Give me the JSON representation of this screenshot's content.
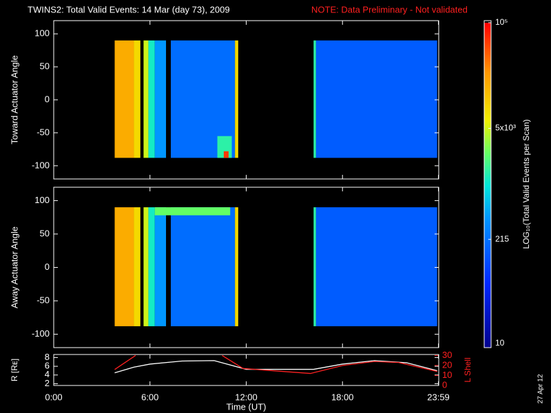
{
  "title": "TWINS2: Total Valid Events: 14 Mar (day  73), 2009",
  "note": "NOTE: Data Preliminary - Not validated",
  "date": "27 Apr 12",
  "colorbar": {
    "label": "LOG₁₀(Total Valid Events per Scan)",
    "lim": [
      10,
      100000
    ],
    "ticks": [
      10,
      215,
      {
        "value": 5000,
        "label": "5x10³"
      },
      {
        "value": 100000,
        "label": "10⁵"
      }
    ]
  },
  "chart_data": [
    {
      "type": "heatmap",
      "ylabel": "Toward Actuator Angle",
      "ylim": [
        -120,
        120
      ],
      "yticks": [
        -100,
        -50,
        0,
        50,
        100
      ],
      "cells": [
        {
          "x0": 3.8,
          "x1": 5.0,
          "y0": -88,
          "y1": 90,
          "value": 18000
        },
        {
          "x0": 5.0,
          "x1": 5.4,
          "y0": -88,
          "y1": 90,
          "value": 9000
        },
        {
          "x0": 5.6,
          "x1": 5.9,
          "y0": -88,
          "y1": 90,
          "value": 5000
        },
        {
          "x0": 5.9,
          "x1": 6.3,
          "y0": -88,
          "y1": 90,
          "value": 1200
        },
        {
          "x0": 6.3,
          "x1": 7.0,
          "y0": -88,
          "y1": 90,
          "value": 400
        },
        {
          "x0": 7.3,
          "x1": 11.3,
          "y0": -88,
          "y1": 90,
          "value": 200
        },
        {
          "x0": 10.2,
          "x1": 11.1,
          "y0": -88,
          "y1": -55,
          "value": 1500
        },
        {
          "x0": 10.6,
          "x1": 10.9,
          "y0": -88,
          "y1": -78,
          "value": 60000
        },
        {
          "x0": 11.3,
          "x1": 11.5,
          "y0": -88,
          "y1": 90,
          "value": 9000
        },
        {
          "x0": 16.2,
          "x1": 16.35,
          "y0": -88,
          "y1": 90,
          "value": 1500
        },
        {
          "x0": 16.35,
          "x1": 23.9,
          "y0": -88,
          "y1": 90,
          "value": 150
        }
      ]
    },
    {
      "type": "heatmap",
      "ylabel": "Away Actuator Angle",
      "ylim": [
        -120,
        120
      ],
      "yticks": [
        -100,
        -50,
        0,
        50,
        100
      ],
      "cells": [
        {
          "x0": 3.8,
          "x1": 5.0,
          "y0": -88,
          "y1": 90,
          "value": 18000
        },
        {
          "x0": 5.0,
          "x1": 5.4,
          "y0": -88,
          "y1": 90,
          "value": 9000
        },
        {
          "x0": 5.6,
          "x1": 5.9,
          "y0": -88,
          "y1": 90,
          "value": 5000
        },
        {
          "x0": 5.9,
          "x1": 6.3,
          "y0": -88,
          "y1": 90,
          "value": 1200
        },
        {
          "x0": 6.3,
          "x1": 7.0,
          "y0": -88,
          "y1": 90,
          "value": 400
        },
        {
          "x0": 7.3,
          "x1": 11.3,
          "y0": -88,
          "y1": 90,
          "value": 200
        },
        {
          "x0": 6.3,
          "x1": 11.0,
          "y0": 78,
          "y1": 90,
          "value": 2500
        },
        {
          "x0": 11.3,
          "x1": 11.5,
          "y0": -88,
          "y1": 90,
          "value": 9000
        },
        {
          "x0": 16.2,
          "x1": 16.35,
          "y0": -88,
          "y1": 90,
          "value": 1500
        },
        {
          "x0": 16.35,
          "x1": 23.9,
          "y0": -88,
          "y1": 90,
          "value": 150
        }
      ]
    },
    {
      "type": "line",
      "ylabel": "R [Rᴇ]",
      "y2label": "L Shell",
      "xlabel": "Time (UT)",
      "xlim": [
        0,
        24
      ],
      "xticks": [
        {
          "value": 0,
          "label": "0:00"
        },
        {
          "value": 6,
          "label": "6:00"
        },
        {
          "value": 12,
          "label": "12:00"
        },
        {
          "value": 18,
          "label": "18:00"
        },
        {
          "value": 23.98,
          "label": "23:59"
        }
      ],
      "ylim": [
        1.6,
        8.7
      ],
      "yticks": [
        2,
        4,
        6,
        8
      ],
      "y2lim": [
        0,
        31
      ],
      "y2ticks": [
        0,
        10,
        20,
        30
      ],
      "series": [
        {
          "color": "#ffffff",
          "x": [
            3.8,
            5,
            6,
            8,
            10,
            12,
            16.2,
            18,
            20,
            22,
            23.9
          ],
          "values": [
            4.5,
            5.8,
            6.5,
            7.2,
            7.3,
            5.3,
            5.3,
            6.5,
            7.3,
            6.8,
            5.0
          ]
        },
        {
          "color": "#ff2020",
          "axis": "y2",
          "x": [
            3.8,
            5.1,
            null,
            10.5,
            11.8,
            16,
            18,
            20,
            21.5,
            23.9
          ],
          "values": [
            16,
            30,
            null,
            30,
            17,
            12,
            20,
            24,
            23,
            14
          ]
        }
      ]
    }
  ]
}
